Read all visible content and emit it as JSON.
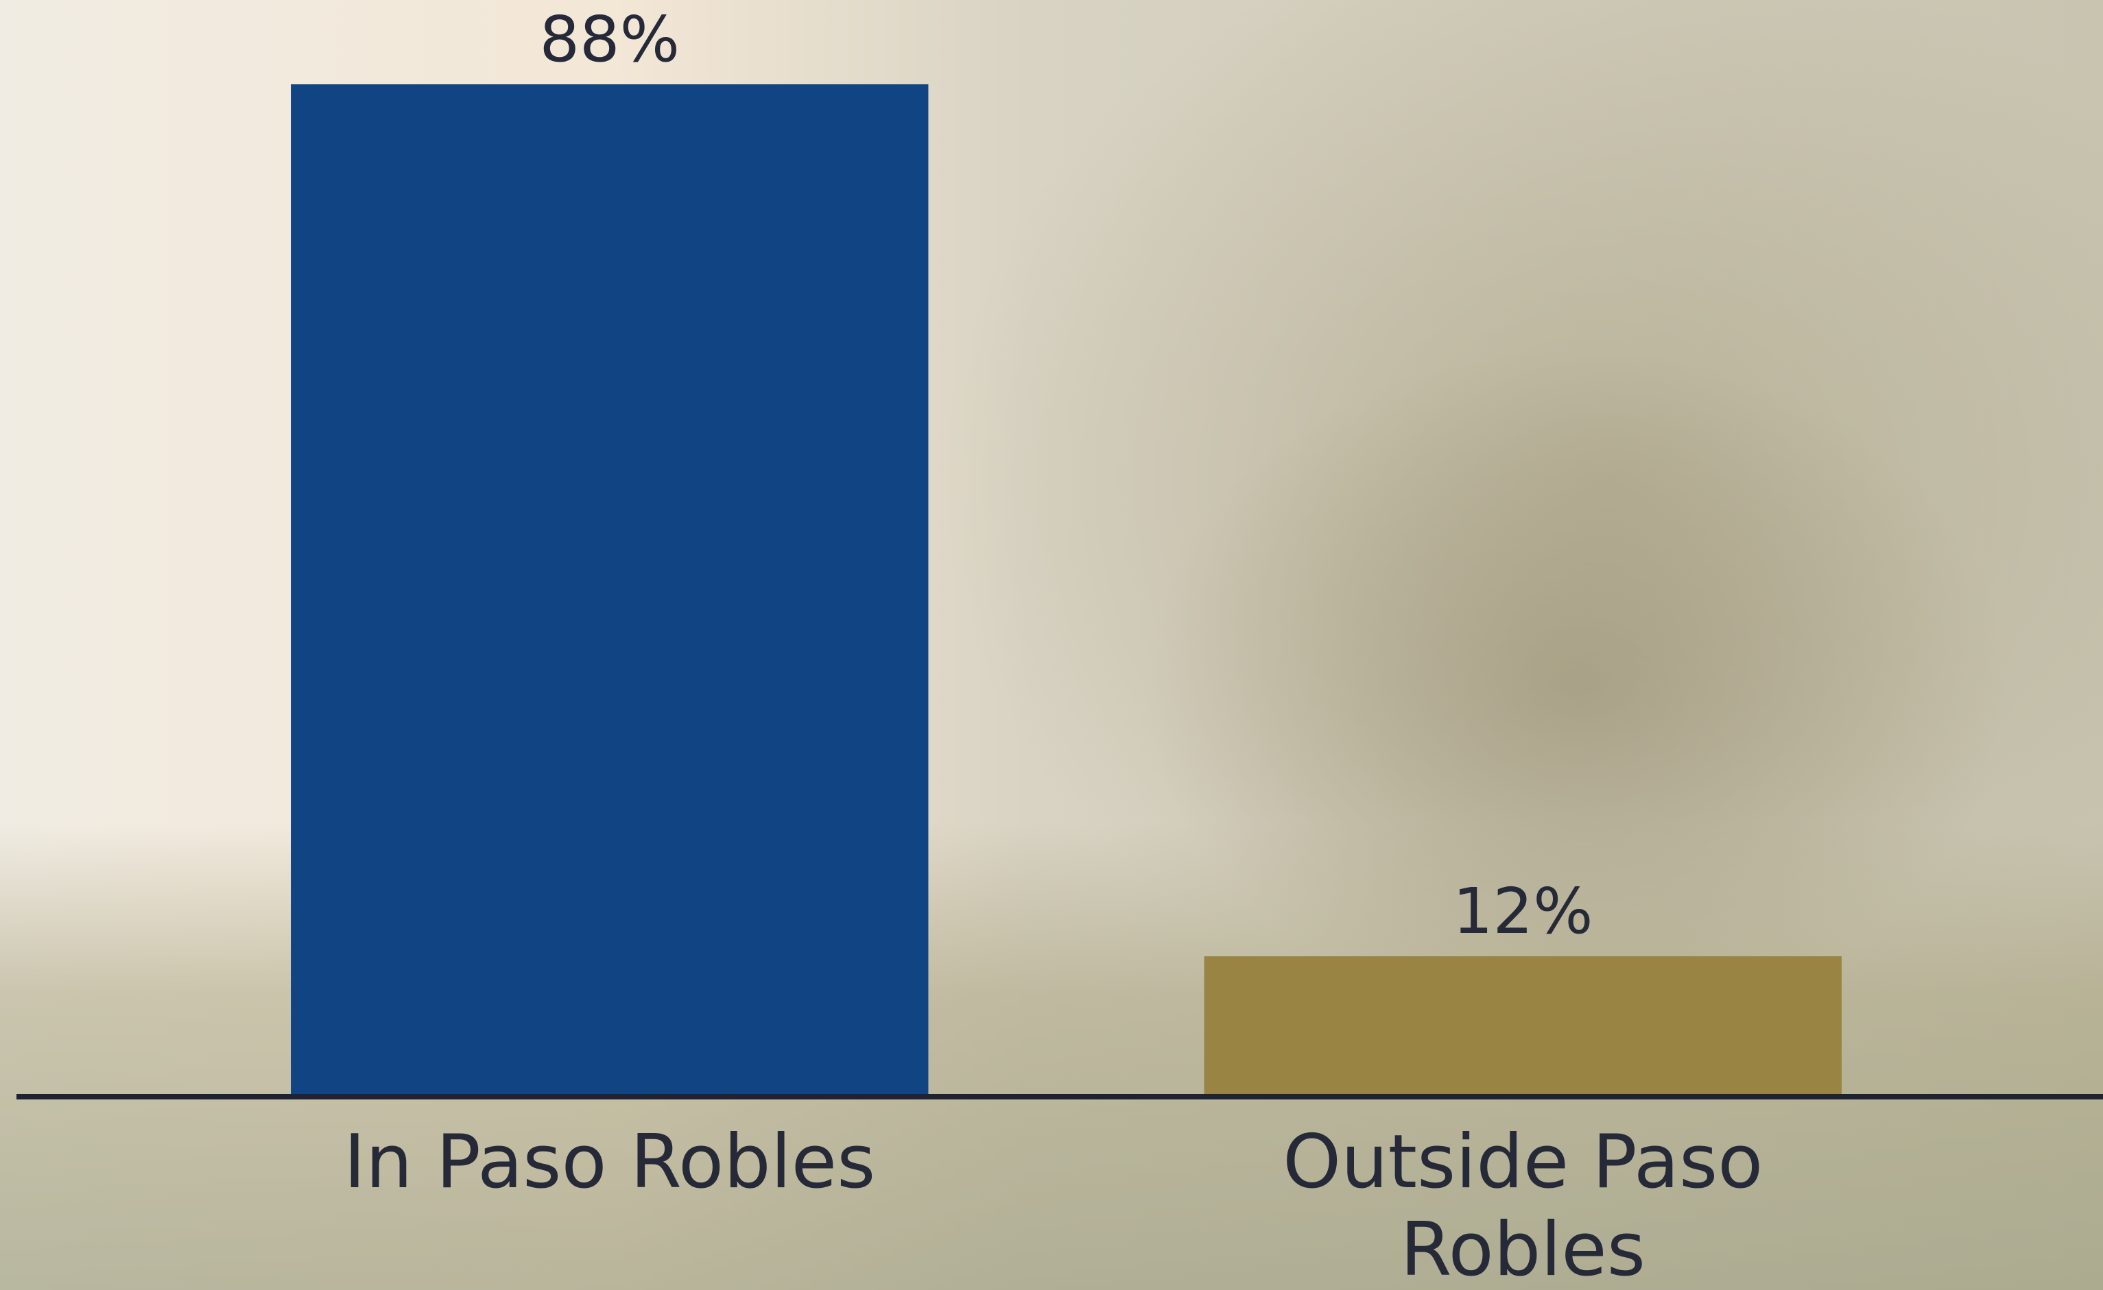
{
  "chart_data": {
    "type": "bar",
    "categories": [
      "In Paso Robles",
      "Outside Paso Robles"
    ],
    "values": [
      88,
      12
    ],
    "value_labels": [
      "88%",
      "12%"
    ],
    "colors": [
      "#114482",
      "#9a8444"
    ]
  }
}
